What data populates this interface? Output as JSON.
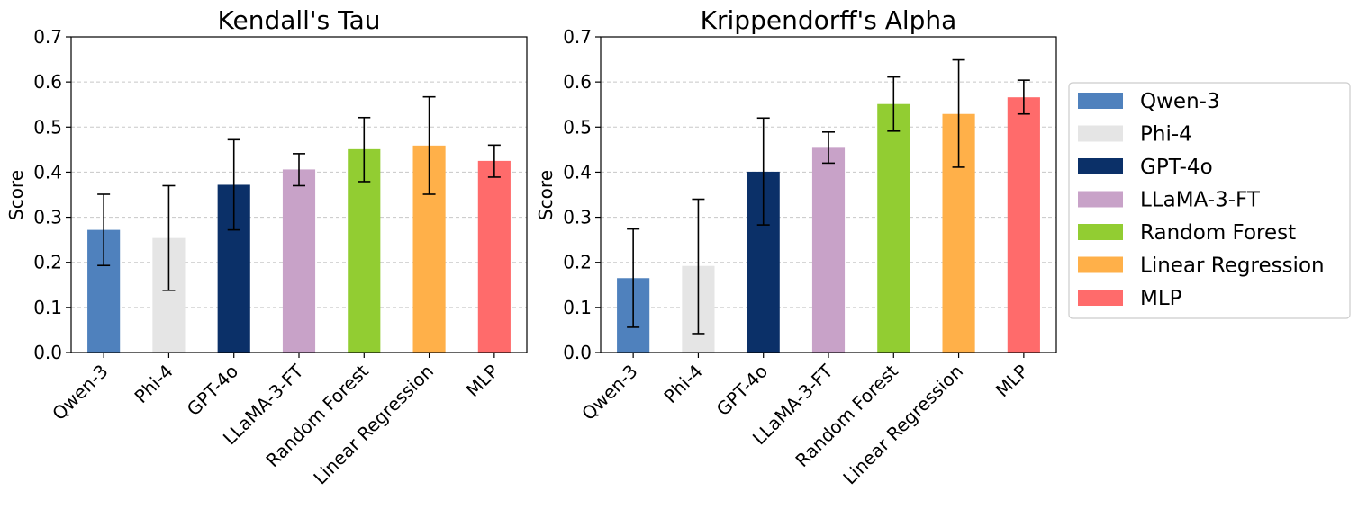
{
  "chart_data": [
    {
      "type": "bar",
      "title": "Kendall's Tau",
      "ylabel": "Score",
      "xlabel": "",
      "ylim": [
        0,
        0.7
      ],
      "yticks": [
        "0.0",
        "0.1",
        "0.2",
        "0.3",
        "0.4",
        "0.5",
        "0.6",
        "0.7"
      ],
      "grid": "y-dashed",
      "categories": [
        "Qwen-3",
        "Phi-4",
        "GPT-4o",
        "LLaMA-3-FT",
        "Random Forest",
        "Linear Regression",
        "MLP"
      ],
      "values": [
        0.272,
        0.254,
        0.372,
        0.406,
        0.451,
        0.459,
        0.425
      ],
      "error_low": [
        0.193,
        0.138,
        0.272,
        0.37,
        0.379,
        0.351,
        0.389
      ],
      "error_high": [
        0.351,
        0.37,
        0.472,
        0.441,
        0.521,
        0.567,
        0.46
      ]
    },
    {
      "type": "bar",
      "title": "Krippendorff's Alpha",
      "ylabel": "Score",
      "xlabel": "",
      "ylim": [
        0,
        0.7
      ],
      "yticks": [
        "0.0",
        "0.1",
        "0.2",
        "0.3",
        "0.4",
        "0.5",
        "0.6",
        "0.7"
      ],
      "grid": "y-dashed",
      "categories": [
        "Qwen-3",
        "Phi-4",
        "GPT-4o",
        "LLaMA-3-FT",
        "Random Forest",
        "Linear Regression",
        "MLP"
      ],
      "values": [
        0.165,
        0.192,
        0.401,
        0.454,
        0.551,
        0.529,
        0.566
      ],
      "error_low": [
        0.056,
        0.042,
        0.283,
        0.42,
        0.491,
        0.411,
        0.529
      ],
      "error_high": [
        0.274,
        0.34,
        0.52,
        0.489,
        0.611,
        0.649,
        0.604
      ]
    }
  ],
  "legend": {
    "placement": "right",
    "entries": [
      "Qwen-3",
      "Phi-4",
      "GPT-4o",
      "LLaMA-3-FT",
      "Random Forest",
      "Linear Regression",
      "MLP"
    ]
  },
  "colors": [
    "#4f81bd",
    "#e5e5e5",
    "#0b3068",
    "#c8a2c8",
    "#92cd32",
    "#ffb049",
    "#ff6b6b"
  ]
}
